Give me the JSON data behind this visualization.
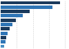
{
  "values": [
    92,
    80,
    45,
    34,
    24,
    18,
    14,
    11,
    9,
    7,
    5
  ],
  "bar_colors": [
    "#1a3a5c",
    "#2e75b6",
    "#1a3a5c",
    "#2e75b6",
    "#1a3a5c",
    "#2e75b6",
    "#1a3a5c",
    "#2e75b6",
    "#1a3a5c",
    "#2e75b6",
    "#4a90c4"
  ],
  "background_color": "#ffffff",
  "bar_height": 0.75,
  "xlim": [
    0,
    105
  ],
  "grid_lines": [
    25,
    50,
    75,
    100
  ]
}
